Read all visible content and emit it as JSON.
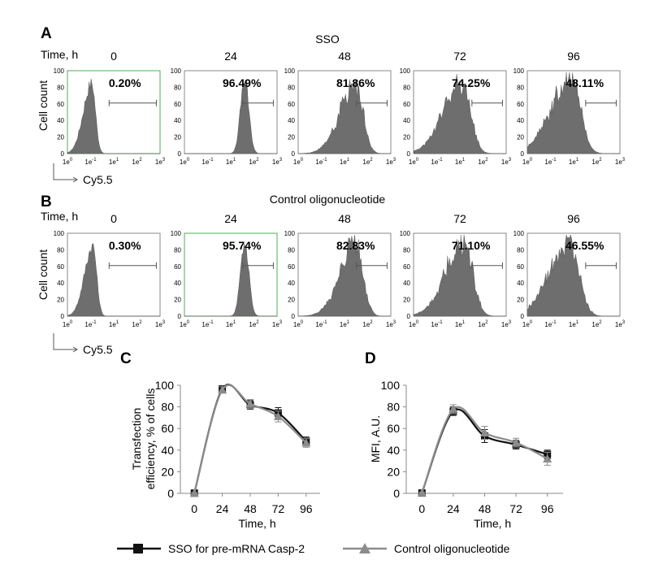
{
  "section_a": {
    "letter": "A",
    "title": "SSO",
    "time_label": "Time, h"
  },
  "section_b": {
    "letter": "B",
    "title": "Control oligonucleotide",
    "time_label": "Time, h"
  },
  "histogram_common": {
    "ylabel": "Cell count",
    "xlabel": "Cy5.5",
    "yticks": [
      "0",
      "20",
      "40",
      "60",
      "80",
      "100"
    ],
    "xticks_base": [
      "1e",
      "1e",
      "1e",
      "1e",
      "1e"
    ],
    "xticks_exp": [
      "0",
      "-1",
      "1",
      "2",
      "3"
    ]
  },
  "panel_c": {
    "letter": "C"
  },
  "panel_d": {
    "letter": "D"
  },
  "legend": {
    "series1": "SSO for pre-mRNA Casp-2",
    "series2": "Control oligonucleotide",
    "series1_color": "#111111",
    "series2_color": "#8c8c8c"
  },
  "chart_data": [
    {
      "type": "histogram",
      "group": "SSO",
      "ylabel": "Cell count",
      "xlabel": "Cy5.5",
      "ylim": [
        0,
        100
      ],
      "x_scale": "log",
      "panels": [
        {
          "time": "0",
          "percent": "0.20%",
          "peak_decade": -0.9,
          "peak_count": 95
        },
        {
          "time": "24",
          "percent": "96.49%",
          "peak_decade": 1.6,
          "peak_count": 100
        },
        {
          "time": "48",
          "percent": "81.86%",
          "peak_decade": 1.5,
          "peak_count": 95
        },
        {
          "time": "72",
          "percent": "74.25%",
          "peak_decade": 1.1,
          "peak_count": 100
        },
        {
          "time": "96",
          "percent": "48.11%",
          "peak_decade": 0.8,
          "peak_count": 100
        }
      ]
    },
    {
      "type": "histogram",
      "group": "Control oligonucleotide",
      "ylabel": "Cell count",
      "xlabel": "Cy5.5",
      "ylim": [
        0,
        100
      ],
      "x_scale": "log",
      "panels": [
        {
          "time": "0",
          "percent": "0.30%",
          "peak_decade": -0.8,
          "peak_count": 95
        },
        {
          "time": "24",
          "percent": "95.74%",
          "peak_decade": 1.6,
          "peak_count": 100
        },
        {
          "time": "48",
          "percent": "82.83%",
          "peak_decade": 1.5,
          "peak_count": 100
        },
        {
          "time": "72",
          "percent": "71.10%",
          "peak_decade": 1.2,
          "peak_count": 100
        },
        {
          "time": "96",
          "percent": "46.55%",
          "peak_decade": 0.7,
          "peak_count": 100
        }
      ]
    },
    {
      "type": "line",
      "panel": "C",
      "xlabel": "Time, h",
      "ylabel": "Transfection efficiency, % of cells",
      "x": [
        0,
        24,
        48,
        72,
        96
      ],
      "xlim": [
        -12,
        108
      ],
      "ylim": [
        0,
        100
      ],
      "yticks": [
        0,
        20,
        40,
        60,
        80,
        100
      ],
      "series": [
        {
          "name": "SSO for pre-mRNA Casp-2",
          "values": [
            0.2,
            96.5,
            81.9,
            74.3,
            48.1
          ],
          "err": [
            0.5,
            3,
            4,
            5,
            4
          ]
        },
        {
          "name": "Control oligonucleotide",
          "values": [
            0.3,
            95.7,
            82.8,
            71.1,
            46.6
          ],
          "err": [
            0.5,
            3,
            4,
            5,
            4
          ]
        }
      ]
    },
    {
      "type": "line",
      "panel": "D",
      "xlabel": "Time, h",
      "ylabel": "MFI, A.U.",
      "x": [
        0,
        24,
        48,
        72,
        96
      ],
      "xlim": [
        -12,
        108
      ],
      "ylim": [
        0,
        100
      ],
      "yticks": [
        0,
        20,
        40,
        60,
        80,
        100
      ],
      "series": [
        {
          "name": "SSO for pre-mRNA Casp-2",
          "values": [
            0.3,
            76,
            53,
            45,
            36
          ],
          "err": [
            0.5,
            4,
            6,
            4,
            4
          ]
        },
        {
          "name": "Control oligonucleotide",
          "values": [
            0.5,
            78,
            56,
            47,
            32
          ],
          "err": [
            0.5,
            4,
            6,
            4,
            6
          ]
        }
      ]
    }
  ]
}
